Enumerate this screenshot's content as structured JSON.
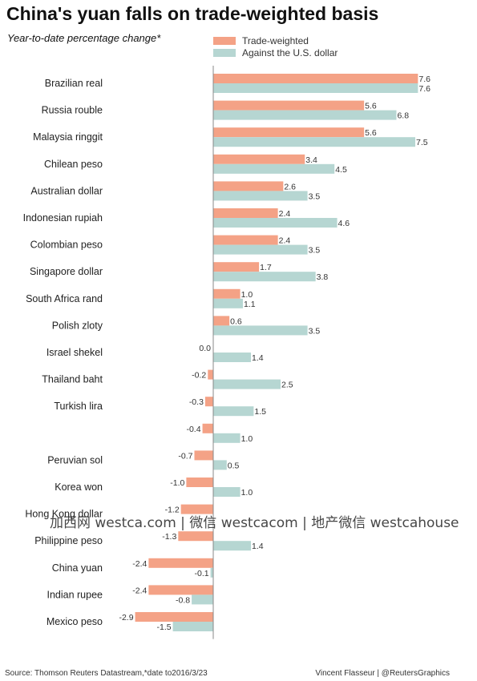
{
  "title": "China's yuan falls on trade-weighted basis",
  "subtitle": "Year-to-date percentage change*",
  "legend": {
    "trade_weighted": "Trade-weighted",
    "usd": "Against the U.S. dollar"
  },
  "colors": {
    "trade_weighted": "#f4a286",
    "usd": "#b6d6d2",
    "axis": "#888888"
  },
  "source": "Source: Thomson Reuters Datastream,*date to2016/3/23",
  "credit": "Vincent Flasseur | @ReutersGraphics",
  "watermark": "加西网 westca.com | 微信 westcacom | 地产微信 westcahouse",
  "chart_data": {
    "type": "bar",
    "orientation": "horizontal",
    "categories": [
      "Brazilian real",
      "Russia rouble",
      "Malaysia ringgit",
      "Chilean peso",
      "Australian dollar",
      "Indonesian rupiah",
      "Colombian peso",
      "Singapore dollar",
      "South Africa rand",
      "Polish zloty",
      "Israel shekel",
      "Thailand baht",
      "Turkish lira",
      "",
      "Peruvian sol",
      "Korea won",
      "Hong Kong dollar",
      "Philippine peso",
      "China yuan",
      "Indian rupee",
      "Mexico peso"
    ],
    "series": [
      {
        "name": "Trade-weighted",
        "values": [
          7.6,
          5.6,
          5.6,
          3.4,
          2.6,
          2.4,
          2.4,
          1.7,
          1.0,
          0.6,
          0.0,
          -0.2,
          -0.3,
          -0.4,
          -0.7,
          -1.0,
          -1.2,
          -1.3,
          -2.4,
          -2.4,
          -2.9
        ],
        "labels": [
          "7.6",
          "5.6",
          "5.6",
          "3.4",
          "2.6",
          "2.4",
          "2.4",
          "1.7",
          "1.0",
          "0.6",
          "0.0",
          "-0.2",
          "-0.3",
          "-0.4",
          "-0.7",
          "-1.0",
          "-1.2",
          "-1.3",
          "-2.4",
          "-2.4",
          "-2.9"
        ]
      },
      {
        "name": "Against the U.S. dollar",
        "values": [
          7.6,
          6.8,
          7.5,
          4.5,
          3.5,
          4.6,
          3.5,
          3.8,
          1.1,
          3.5,
          1.4,
          2.5,
          1.5,
          1.0,
          0.5,
          1.0,
          0.0,
          1.4,
          -0.1,
          -0.8,
          -1.5
        ],
        "labels": [
          "7.6",
          "6.8",
          "7.5",
          "4.5",
          "3.5",
          "4.6",
          "3.5",
          "3.8",
          "1.1",
          "3.5",
          "1.4",
          "2.5",
          "1.5",
          "1.0",
          "0.5",
          "1.0",
          "",
          "1.4",
          "-0.1",
          "-0.8",
          "-1.5"
        ]
      }
    ],
    "xlim": [
      -3.0,
      7.6
    ],
    "grid": false,
    "legend_position": "top"
  }
}
